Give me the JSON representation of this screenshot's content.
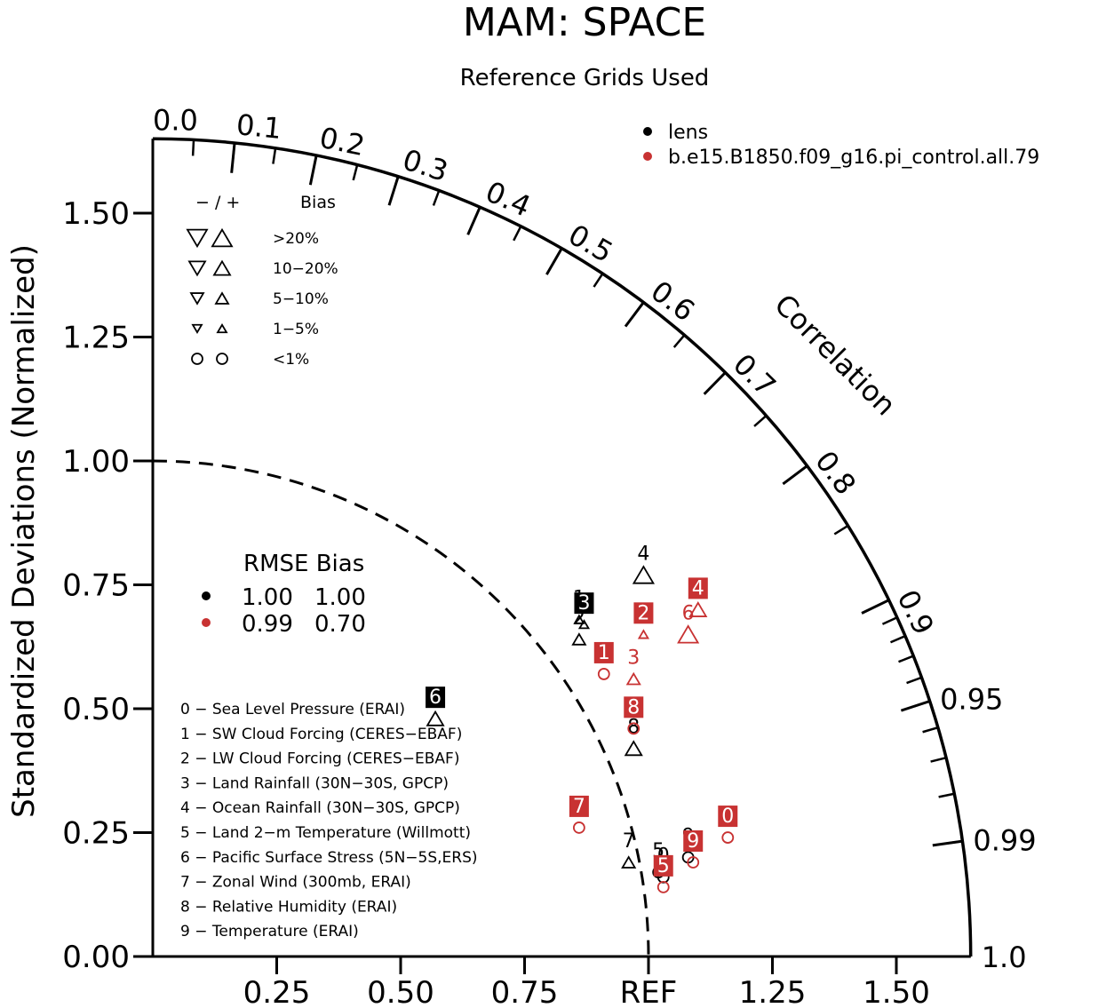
{
  "title": "MAM: SPACE",
  "subtitle": "Reference Grids Used",
  "ylabel": "Standardized Deviations (Normalized)",
  "correlation_label": "Correlation",
  "colors": {
    "lens": "#000000",
    "control": "#c83232",
    "axis": "#000000"
  },
  "legend": {
    "models": [
      {
        "name": "lens",
        "color": "#000000"
      },
      {
        "name": "b.e15.B1850.f09_g16.pi_control.all.79",
        "color": "#c83232"
      }
    ],
    "bias_header": {
      "signs": "− / +",
      "label": "Bias"
    },
    "bias_rows": [
      {
        "label": ">20%",
        "shape": "triangle",
        "size": "xl"
      },
      {
        "label": "10−20%",
        "shape": "triangle",
        "size": "l"
      },
      {
        "label": "5−10%",
        "shape": "triangle",
        "size": "m"
      },
      {
        "label": "1−5%",
        "shape": "triangle",
        "size": "s"
      },
      {
        "label": "<1%",
        "shape": "circle",
        "size": "c"
      }
    ],
    "rmse_header": "RMSE Bias",
    "rmse_rows": [
      {
        "color": "#000000",
        "rmse": "1.00",
        "bias": "1.00"
      },
      {
        "color": "#c83232",
        "rmse": "0.99",
        "bias": "0.70"
      }
    ],
    "variables": [
      "0 − Sea Level Pressure (ERAI)",
      "1 − SW Cloud Forcing (CERES−EBAF)",
      "2 − LW Cloud Forcing (CERES−EBAF)",
      "3 − Land Rainfall (30N−30S, GPCP)",
      "4 − Ocean Rainfall (30N−30S, GPCP)",
      "5 − Land 2−m Temperature (Willmott)",
      "6 − Pacific Surface Stress (5N−5S,ERS)",
      "7 − Zonal Wind (300mb, ERAI)",
      "8 − Relative Humidity (ERAI)",
      "9 − Temperature (ERAI)"
    ]
  },
  "chart_data": {
    "type": "scatter",
    "diagram": "taylor",
    "title": "MAM: SPACE",
    "subtitle": "Reference Grids Used",
    "ylabel": "Standardized Deviations (Normalized)",
    "xlabel_ref": "REF",
    "x_ticks": [
      "0.25",
      "0.50",
      "0.75",
      "REF",
      "1.25",
      "1.50"
    ],
    "y_ticks": [
      "0.00",
      "0.25",
      "0.50",
      "0.75",
      "1.00",
      "1.25",
      "1.50"
    ],
    "corr_ticks": [
      "0.0",
      "0.1",
      "0.2",
      "0.3",
      "0.4",
      "0.5",
      "0.6",
      "0.7",
      "0.8",
      "0.9",
      "0.95",
      "0.99",
      "1.0"
    ],
    "max_std": 1.65,
    "series": [
      {
        "name": "lens",
        "color": "#000000",
        "points": [
          {
            "id": "0",
            "x": 1.03,
            "y": 0.16,
            "marker": "circle",
            "size": "c",
            "label_style": "plain"
          },
          {
            "id": "1",
            "x": 0.86,
            "y": 0.68,
            "marker": "up",
            "size": "s",
            "label_style": "plain"
          },
          {
            "id": "2",
            "x": 0.86,
            "y": 0.64,
            "marker": "up",
            "size": "m",
            "label_style": "plain"
          },
          {
            "id": "3",
            "x": 0.87,
            "y": 0.67,
            "marker": "up",
            "size": "s",
            "label_style": "box"
          },
          {
            "id": "4",
            "x": 0.99,
            "y": 0.77,
            "marker": "up",
            "size": "xl",
            "label_style": "plain"
          },
          {
            "id": "5",
            "x": 1.02,
            "y": 0.17,
            "marker": "circle",
            "size": "c",
            "label_style": "plain"
          },
          {
            "id": "6",
            "x": 0.57,
            "y": 0.48,
            "marker": "up",
            "size": "l",
            "label_style": "box"
          },
          {
            "id": "7",
            "x": 0.96,
            "y": 0.19,
            "marker": "up",
            "size": "m",
            "label_style": "plain"
          },
          {
            "id": "8",
            "x": 0.97,
            "y": 0.42,
            "marker": "up",
            "size": "l",
            "label_style": "plain"
          },
          {
            "id": "9",
            "x": 1.08,
            "y": 0.2,
            "marker": "circle",
            "size": "c",
            "label_style": "plain"
          }
        ]
      },
      {
        "name": "b.e15.B1850.f09_g16.pi_control.all.79",
        "color": "#c83232",
        "points": [
          {
            "id": "0",
            "x": 1.16,
            "y": 0.24,
            "marker": "circle",
            "size": "c",
            "label_style": "box"
          },
          {
            "id": "1",
            "x": 0.91,
            "y": 0.57,
            "marker": "circle",
            "size": "c",
            "label_style": "box"
          },
          {
            "id": "2",
            "x": 0.99,
            "y": 0.65,
            "marker": "up",
            "size": "s",
            "label_style": "box"
          },
          {
            "id": "3",
            "x": 0.97,
            "y": 0.56,
            "marker": "up",
            "size": "m",
            "label_style": "plain"
          },
          {
            "id": "4",
            "x": 1.1,
            "y": 0.7,
            "marker": "up",
            "size": "l",
            "label_style": "box"
          },
          {
            "id": "5",
            "x": 1.03,
            "y": 0.14,
            "marker": "circle",
            "size": "c",
            "label_style": "box"
          },
          {
            "id": "6",
            "x": 1.08,
            "y": 0.65,
            "marker": "up",
            "size": "xl",
            "label_style": "plain"
          },
          {
            "id": "7",
            "x": 0.86,
            "y": 0.26,
            "marker": "circle",
            "size": "c",
            "label_style": "box"
          },
          {
            "id": "8",
            "x": 0.97,
            "y": 0.46,
            "marker": "circle",
            "size": "c",
            "label_style": "box"
          },
          {
            "id": "9",
            "x": 1.09,
            "y": 0.19,
            "marker": "circle",
            "size": "c",
            "label_style": "box"
          }
        ]
      }
    ]
  }
}
